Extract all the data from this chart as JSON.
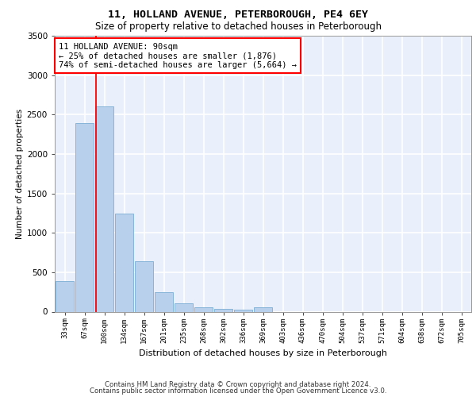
{
  "title": "11, HOLLAND AVENUE, PETERBOROUGH, PE4 6EY",
  "subtitle": "Size of property relative to detached houses in Peterborough",
  "xlabel": "Distribution of detached houses by size in Peterborough",
  "ylabel": "Number of detached properties",
  "categories": [
    "33sqm",
    "67sqm",
    "100sqm",
    "134sqm",
    "167sqm",
    "201sqm",
    "235sqm",
    "268sqm",
    "302sqm",
    "336sqm",
    "369sqm",
    "403sqm",
    "436sqm",
    "470sqm",
    "504sqm",
    "537sqm",
    "571sqm",
    "604sqm",
    "638sqm",
    "672sqm",
    "705sqm"
  ],
  "values": [
    390,
    2390,
    2600,
    1240,
    640,
    245,
    105,
    55,
    40,
    30,
    55,
    0,
    0,
    0,
    0,
    0,
    0,
    0,
    0,
    0,
    0
  ],
  "bar_color": "#b8d0eb",
  "bar_edge_color": "#7aadd4",
  "vline_color": "red",
  "vline_position": 1.57,
  "annotation_text": "11 HOLLAND AVENUE: 90sqm\n← 25% of detached houses are smaller (1,876)\n74% of semi-detached houses are larger (5,664) →",
  "annotation_box_color": "white",
  "annotation_box_edge": "red",
  "ylim": [
    0,
    3500
  ],
  "yticks": [
    0,
    500,
    1000,
    1500,
    2000,
    2500,
    3000,
    3500
  ],
  "background_color": "#eaf0fb",
  "grid_color": "white",
  "footer_line1": "Contains HM Land Registry data © Crown copyright and database right 2024.",
  "footer_line2": "Contains public sector information licensed under the Open Government Licence v3.0."
}
